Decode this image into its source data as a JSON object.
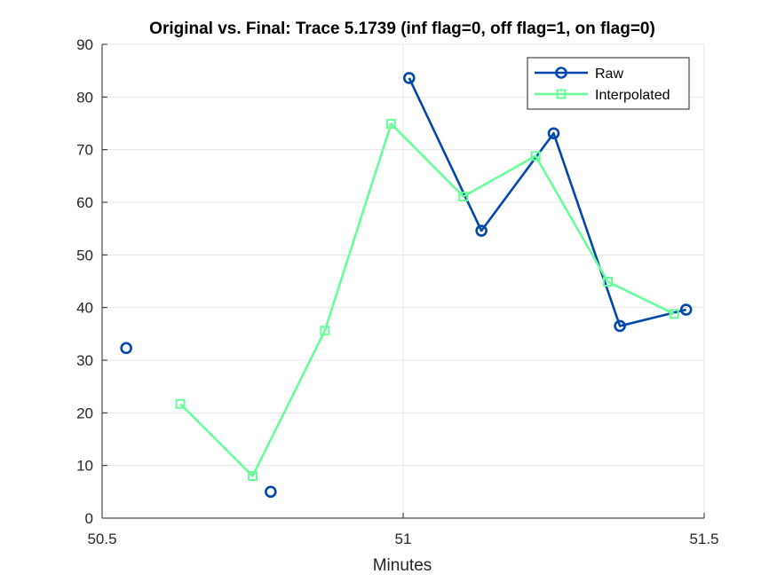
{
  "colors": {
    "raw": "#0047ab",
    "interpolated": "#66ff99",
    "grid": "#e6e6e6",
    "axis": "#262626"
  },
  "chart_data": {
    "type": "line",
    "title": "Original vs. Final: Trace 5.1739 (inf flag=0, off flag=1, on flag=0)",
    "xlabel": "Minutes",
    "ylabel": "",
    "xlim": [
      50.5,
      51.5
    ],
    "ylim": [
      0,
      90
    ],
    "xticks": [
      50.5,
      51,
      51.5
    ],
    "xtick_labels": [
      "50.5",
      "51",
      "51.5"
    ],
    "yticks": [
      0,
      10,
      20,
      30,
      40,
      50,
      60,
      70,
      80,
      90
    ],
    "ytick_labels": [
      "0",
      "10",
      "20",
      "30",
      "40",
      "50",
      "60",
      "70",
      "80",
      "90"
    ],
    "grid": true,
    "legend_position": "top-right",
    "series": [
      {
        "name": "Raw",
        "marker": "circle",
        "color": "#0047ab",
        "x": [
          50.54,
          50.78,
          51.01,
          51.13,
          51.25,
          51.36,
          51.47
        ],
        "y": [
          32.3,
          5.0,
          83.6,
          54.6,
          73.1,
          36.5,
          39.6
        ],
        "connect": [
          false,
          false,
          true,
          true,
          true,
          true,
          true
        ]
      },
      {
        "name": "Interpolated",
        "marker": "square",
        "color": "#66ff99",
        "x": [
          50.63,
          50.75,
          50.87,
          50.98,
          51.1,
          51.22,
          51.34,
          51.45
        ],
        "y": [
          21.7,
          8.0,
          35.6,
          74.9,
          61.1,
          68.8,
          44.9,
          38.8
        ],
        "connect": [
          true,
          true,
          true,
          true,
          true,
          true,
          true,
          true
        ]
      }
    ]
  }
}
